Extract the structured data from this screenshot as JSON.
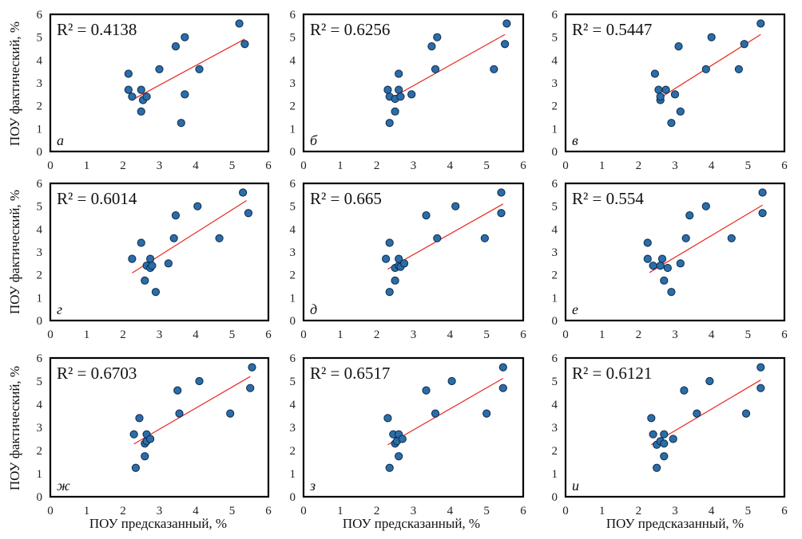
{
  "figure": {
    "ylabel": "ПОУ фактический, %",
    "xlabel": "ПОУ предсказанный, %"
  },
  "colors": {
    "marker_fill": "#2b6da8",
    "marker_edge": "#0d2a4a",
    "trend_line": "#e8281e",
    "frame": "#000000"
  },
  "chart_data": [
    {
      "type": "scatter",
      "panel_label": "а",
      "r2_text": "R² = 0.4138",
      "xlim": [
        0,
        6
      ],
      "ylim": [
        0,
        6
      ],
      "xticks": [
        0,
        1,
        2,
        3,
        4,
        5,
        6
      ],
      "yticks": [
        0,
        1,
        2,
        3,
        4,
        5,
        6
      ],
      "grid": false,
      "points": [
        [
          2.15,
          3.4
        ],
        [
          2.15,
          2.7
        ],
        [
          2.25,
          2.4
        ],
        [
          2.5,
          2.7
        ],
        [
          2.5,
          1.75
        ],
        [
          2.55,
          2.25
        ],
        [
          2.65,
          2.4
        ],
        [
          3.0,
          3.6
        ],
        [
          3.45,
          4.6
        ],
        [
          3.6,
          1.25
        ],
        [
          3.7,
          5.0
        ],
        [
          3.7,
          2.5
        ],
        [
          4.1,
          3.6
        ],
        [
          5.2,
          5.6
        ],
        [
          5.35,
          4.7
        ]
      ],
      "trend": [
        [
          2.3,
          2.3
        ],
        [
          5.35,
          4.92
        ]
      ]
    },
    {
      "type": "scatter",
      "panel_label": "б",
      "r2_text": "R² = 0.6256",
      "xlim": [
        0,
        6
      ],
      "ylim": [
        0,
        6
      ],
      "xticks": [
        0,
        1,
        2,
        3,
        4,
        5,
        6
      ],
      "yticks": [
        0,
        1,
        2,
        3,
        4,
        5,
        6
      ],
      "grid": false,
      "points": [
        [
          2.3,
          2.7
        ],
        [
          2.35,
          2.4
        ],
        [
          2.35,
          1.25
        ],
        [
          2.5,
          2.3
        ],
        [
          2.5,
          1.75
        ],
        [
          2.6,
          3.4
        ],
        [
          2.6,
          2.7
        ],
        [
          2.65,
          2.4
        ],
        [
          2.95,
          2.5
        ],
        [
          3.5,
          4.6
        ],
        [
          3.6,
          3.6
        ],
        [
          3.65,
          5.0
        ],
        [
          5.2,
          3.6
        ],
        [
          5.5,
          4.7
        ],
        [
          5.55,
          5.6
        ]
      ],
      "trend": [
        [
          2.3,
          2.25
        ],
        [
          5.5,
          5.12
        ]
      ]
    },
    {
      "type": "scatter",
      "panel_label": "в",
      "r2_text": "R² = 0.5447",
      "xlim": [
        0,
        6
      ],
      "ylim": [
        0,
        6
      ],
      "xticks": [
        0,
        1,
        2,
        3,
        4,
        5,
        6
      ],
      "yticks": [
        0,
        1,
        2,
        3,
        4,
        5,
        6
      ],
      "grid": false,
      "points": [
        [
          2.45,
          3.4
        ],
        [
          2.55,
          2.7
        ],
        [
          2.6,
          2.25
        ],
        [
          2.6,
          2.4
        ],
        [
          2.75,
          2.7
        ],
        [
          2.9,
          1.25
        ],
        [
          3.0,
          2.5
        ],
        [
          3.1,
          4.6
        ],
        [
          3.15,
          1.75
        ],
        [
          3.85,
          3.6
        ],
        [
          4.0,
          5.0
        ],
        [
          4.75,
          3.6
        ],
        [
          4.9,
          4.7
        ],
        [
          5.35,
          5.6
        ]
      ],
      "trend": [
        [
          2.5,
          2.25
        ],
        [
          5.35,
          5.12
        ]
      ]
    },
    {
      "type": "scatter",
      "panel_label": "г",
      "r2_text": "R² = 0.6014",
      "xlim": [
        0,
        6
      ],
      "ylim": [
        0,
        6
      ],
      "xticks": [
        0,
        1,
        2,
        3,
        4,
        5,
        6
      ],
      "yticks": [
        0,
        1,
        2,
        3,
        4,
        5,
        6
      ],
      "grid": false,
      "points": [
        [
          2.25,
          2.7
        ],
        [
          2.5,
          3.4
        ],
        [
          2.6,
          1.75
        ],
        [
          2.65,
          2.4
        ],
        [
          2.75,
          2.7
        ],
        [
          2.75,
          2.3
        ],
        [
          2.8,
          2.4
        ],
        [
          2.9,
          1.25
        ],
        [
          3.25,
          2.5
        ],
        [
          3.4,
          3.6
        ],
        [
          3.45,
          4.6
        ],
        [
          4.05,
          5.0
        ],
        [
          4.65,
          3.6
        ],
        [
          5.3,
          5.6
        ],
        [
          5.45,
          4.7
        ]
      ],
      "trend": [
        [
          2.25,
          2.08
        ],
        [
          5.4,
          5.25
        ]
      ]
    },
    {
      "type": "scatter",
      "panel_label": "д",
      "r2_text": "R² = 0.665",
      "xlim": [
        0,
        6
      ],
      "ylim": [
        0,
        6
      ],
      "xticks": [
        0,
        1,
        2,
        3,
        4,
        5,
        6
      ],
      "yticks": [
        0,
        1,
        2,
        3,
        4,
        5,
        6
      ],
      "grid": false,
      "points": [
        [
          2.25,
          2.7
        ],
        [
          2.35,
          3.4
        ],
        [
          2.35,
          1.25
        ],
        [
          2.5,
          1.75
        ],
        [
          2.5,
          2.3
        ],
        [
          2.6,
          2.4
        ],
        [
          2.6,
          2.7
        ],
        [
          2.65,
          2.35
        ],
        [
          2.75,
          2.5
        ],
        [
          3.35,
          4.6
        ],
        [
          3.65,
          3.6
        ],
        [
          4.15,
          5.0
        ],
        [
          4.95,
          3.6
        ],
        [
          5.4,
          5.6
        ],
        [
          5.4,
          4.7
        ]
      ],
      "trend": [
        [
          2.3,
          2.25
        ],
        [
          5.45,
          5.1
        ]
      ]
    },
    {
      "type": "scatter",
      "panel_label": "е",
      "r2_text": "R² = 0.554",
      "xlim": [
        0,
        6
      ],
      "ylim": [
        0,
        6
      ],
      "xticks": [
        0,
        1,
        2,
        3,
        4,
        5,
        6
      ],
      "yticks": [
        0,
        1,
        2,
        3,
        4,
        5,
        6
      ],
      "grid": false,
      "points": [
        [
          2.25,
          3.4
        ],
        [
          2.25,
          2.7
        ],
        [
          2.4,
          2.4
        ],
        [
          2.6,
          2.4
        ],
        [
          2.65,
          2.7
        ],
        [
          2.7,
          1.75
        ],
        [
          2.8,
          2.3
        ],
        [
          2.9,
          1.25
        ],
        [
          3.15,
          2.5
        ],
        [
          3.3,
          3.6
        ],
        [
          3.4,
          4.6
        ],
        [
          3.85,
          5.0
        ],
        [
          4.55,
          3.6
        ],
        [
          5.4,
          5.6
        ],
        [
          5.4,
          4.7
        ]
      ],
      "trend": [
        [
          2.3,
          2.1
        ],
        [
          5.4,
          5.05
        ]
      ]
    },
    {
      "type": "scatter",
      "panel_label": "ж",
      "r2_text": "R² = 0.6703",
      "xlim": [
        0,
        6
      ],
      "ylim": [
        0,
        6
      ],
      "xticks": [
        0,
        1,
        2,
        3,
        4,
        5,
        6
      ],
      "yticks": [
        0,
        1,
        2,
        3,
        4,
        5,
        6
      ],
      "grid": false,
      "points": [
        [
          2.3,
          2.7
        ],
        [
          2.35,
          1.25
        ],
        [
          2.45,
          3.4
        ],
        [
          2.6,
          1.75
        ],
        [
          2.6,
          2.3
        ],
        [
          2.65,
          2.4
        ],
        [
          2.65,
          2.7
        ],
        [
          2.75,
          2.5
        ],
        [
          3.5,
          4.6
        ],
        [
          3.55,
          3.6
        ],
        [
          4.1,
          5.0
        ],
        [
          4.95,
          3.6
        ],
        [
          5.5,
          4.7
        ],
        [
          5.55,
          5.6
        ]
      ],
      "trend": [
        [
          2.3,
          2.28
        ],
        [
          5.5,
          5.2
        ]
      ]
    },
    {
      "type": "scatter",
      "panel_label": "з",
      "r2_text": "R² = 0.6517",
      "xlim": [
        0,
        6
      ],
      "ylim": [
        0,
        6
      ],
      "xticks": [
        0,
        1,
        2,
        3,
        4,
        5,
        6
      ],
      "yticks": [
        0,
        1,
        2,
        3,
        4,
        5,
        6
      ],
      "grid": false,
      "points": [
        [
          2.3,
          3.4
        ],
        [
          2.35,
          1.25
        ],
        [
          2.45,
          2.7
        ],
        [
          2.5,
          2.3
        ],
        [
          2.55,
          2.4
        ],
        [
          2.6,
          2.7
        ],
        [
          2.6,
          1.75
        ],
        [
          2.7,
          2.5
        ],
        [
          3.35,
          4.6
        ],
        [
          3.6,
          3.6
        ],
        [
          4.05,
          5.0
        ],
        [
          5.0,
          3.6
        ],
        [
          5.45,
          4.7
        ],
        [
          5.45,
          5.6
        ]
      ],
      "trend": [
        [
          2.3,
          2.25
        ],
        [
          5.45,
          5.12
        ]
      ]
    },
    {
      "type": "scatter",
      "panel_label": "и",
      "r2_text": "R² = 0.6121",
      "xlim": [
        0,
        6
      ],
      "ylim": [
        0,
        6
      ],
      "xticks": [
        0,
        1,
        2,
        3,
        4,
        5,
        6
      ],
      "yticks": [
        0,
        1,
        2,
        3,
        4,
        5,
        6
      ],
      "grid": false,
      "points": [
        [
          2.35,
          3.4
        ],
        [
          2.4,
          2.7
        ],
        [
          2.5,
          1.25
        ],
        [
          2.5,
          2.25
        ],
        [
          2.6,
          2.4
        ],
        [
          2.7,
          2.7
        ],
        [
          2.7,
          1.75
        ],
        [
          2.7,
          2.3
        ],
        [
          2.95,
          2.5
        ],
        [
          3.25,
          4.6
        ],
        [
          3.6,
          3.6
        ],
        [
          3.95,
          5.0
        ],
        [
          4.95,
          3.6
        ],
        [
          5.35,
          4.7
        ],
        [
          5.35,
          5.6
        ]
      ],
      "trend": [
        [
          2.35,
          2.25
        ],
        [
          5.35,
          5.05
        ]
      ]
    }
  ]
}
